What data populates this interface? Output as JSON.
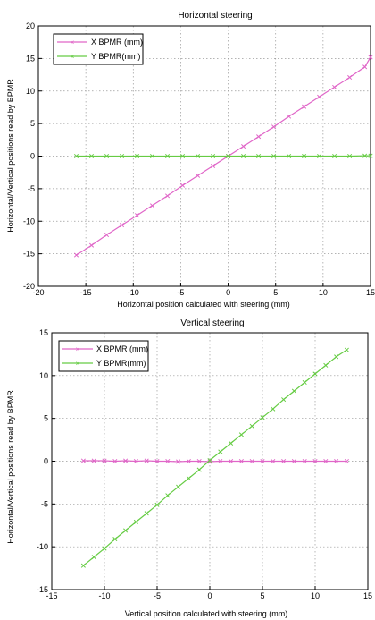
{
  "chart_data": [
    {
      "type": "line",
      "title": "Horizontal steering",
      "xlabel": "Horizontal position calculated with steering (mm)",
      "ylabel": "Horizontal/Vertical positions read by BPMR",
      "xlim": [
        -20,
        15
      ],
      "ylim": [
        -20,
        20
      ],
      "xticks": [
        "-20",
        "-15",
        "-10",
        "-5",
        "0",
        "5",
        "10",
        "15"
      ],
      "yticks": [
        "20",
        "15",
        "10",
        "5",
        "0",
        "-5",
        "-10",
        "-15",
        "-20"
      ],
      "grid": true,
      "legend_position": "top-left",
      "x": [
        -16,
        -14.4,
        -12.8,
        -11.2,
        -9.6,
        -8,
        -6.4,
        -4.8,
        -3.2,
        -1.6,
        0,
        1.6,
        3.2,
        4.8,
        6.4,
        8,
        9.6,
        11.2,
        12.8,
        14.4,
        15
      ],
      "series": [
        {
          "name": "X BPMR (mm)",
          "color": "#e066c8",
          "marker": "x",
          "values": [
            -15.2,
            -13.7,
            -12.1,
            -10.6,
            -9.1,
            -7.6,
            -6.1,
            -4.5,
            -3.0,
            -1.5,
            0.0,
            1.5,
            3.0,
            4.5,
            6.1,
            7.6,
            9.1,
            10.6,
            12.1,
            13.7,
            15.2
          ]
        },
        {
          "name": "Y BPMR(mm)",
          "color": "#66cc44",
          "marker": "x",
          "values": [
            0.0,
            0.0,
            0.0,
            0.0,
            0.0,
            0.0,
            0.0,
            0.0,
            0.0,
            0.0,
            0.0,
            0.0,
            0.0,
            0.0,
            0.0,
            0.0,
            0.0,
            0.0,
            0.0,
            0.05,
            0.05
          ]
        }
      ]
    },
    {
      "type": "line",
      "title": "Vertical steering",
      "xlabel": "Vertical position calculated with steering (mm)",
      "ylabel": "Horizontal/Vertical positions read by BPMR",
      "xlim": [
        -15,
        15
      ],
      "ylim": [
        -15,
        15
      ],
      "xticks": [
        "-15",
        "-10",
        "-5",
        "0",
        "5",
        "10",
        "15"
      ],
      "yticks": [
        "15",
        "10",
        "5",
        "0",
        "-5",
        "-10",
        "-15"
      ],
      "grid": true,
      "legend_position": "top-left",
      "x": [
        -12,
        -11,
        -10,
        -9,
        -8,
        -7,
        -6,
        -5,
        -4,
        -3,
        -2,
        -1,
        0,
        1,
        2,
        3,
        4,
        5,
        6,
        7,
        8,
        9,
        10,
        11,
        12,
        13
      ],
      "series": [
        {
          "name": "X BPMR (mm)",
          "color": "#e066c8",
          "marker": "x",
          "values": [
            0.05,
            0.05,
            0.05,
            0.0,
            0.05,
            0.0,
            0.05,
            0.0,
            0.0,
            -0.05,
            0.0,
            0.0,
            -0.05,
            0.0,
            0.0,
            0.0,
            0.0,
            0.0,
            0.0,
            0.0,
            0.0,
            0.0,
            0.0,
            0.0,
            0.0,
            0.0
          ]
        },
        {
          "name": "Y BPMR(mm)",
          "color": "#66cc44",
          "marker": "x",
          "values": [
            -12.2,
            -11.2,
            -10.2,
            -9.1,
            -8.1,
            -7.1,
            -6.1,
            -5.1,
            -4.0,
            -3.0,
            -2.0,
            -1.0,
            0.1,
            1.1,
            2.1,
            3.1,
            4.1,
            5.1,
            6.1,
            7.2,
            8.2,
            9.2,
            10.2,
            11.2,
            12.2,
            13.0
          ]
        }
      ]
    }
  ]
}
